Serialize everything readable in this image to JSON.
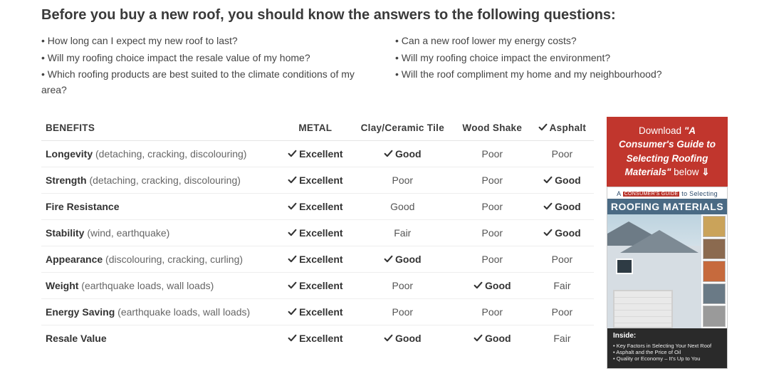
{
  "heading": "Before you buy a new roof, you should know the answers to the following questions:",
  "questions_left": [
    "• How long can I expect my new roof to last?",
    "• Will my roofing choice impact the resale value of my home?",
    "• Which roofing products are best suited to the climate conditions of my area?"
  ],
  "questions_right": [
    "• Can a new roof lower my energy costs?",
    "• Will my roofing choice impact the environment?",
    "• Will the roof compliment my home and my neighbourhood?"
  ],
  "table": {
    "header_benefits": "BENEFITS",
    "columns": [
      {
        "label": "METAL",
        "checked": false
      },
      {
        "label": "Clay/Ceramic Tile",
        "checked": false
      },
      {
        "label": "Wood Shake",
        "checked": false
      },
      {
        "label": "Asphalt",
        "checked": true
      }
    ],
    "rows": [
      {
        "name": "Longevity",
        "note": "(detaching, cracking, discolouring)",
        "cells": [
          {
            "v": "Excellent",
            "b": true,
            "c": true
          },
          {
            "v": "Good",
            "b": true,
            "c": true
          },
          {
            "v": "Poor",
            "b": false,
            "c": false
          },
          {
            "v": "Poor",
            "b": false,
            "c": false
          }
        ]
      },
      {
        "name": "Strength",
        "note": "(detaching, cracking, discolouring)",
        "cells": [
          {
            "v": "Excellent",
            "b": true,
            "c": true
          },
          {
            "v": "Poor",
            "b": false,
            "c": false
          },
          {
            "v": "Poor",
            "b": false,
            "c": false
          },
          {
            "v": "Good",
            "b": true,
            "c": true
          }
        ]
      },
      {
        "name": "Fire Resistance",
        "note": "",
        "cells": [
          {
            "v": "Excellent",
            "b": true,
            "c": true
          },
          {
            "v": "Good",
            "b": false,
            "c": false
          },
          {
            "v": "Poor",
            "b": false,
            "c": false
          },
          {
            "v": "Good",
            "b": true,
            "c": true
          }
        ]
      },
      {
        "name": "Stability",
        "note": "(wind, earthquake)",
        "cells": [
          {
            "v": "Excellent",
            "b": true,
            "c": true
          },
          {
            "v": "Fair",
            "b": false,
            "c": false
          },
          {
            "v": "Poor",
            "b": false,
            "c": false
          },
          {
            "v": "Good",
            "b": true,
            "c": true
          }
        ]
      },
      {
        "name": "Appearance",
        "note": "(discolouring, cracking, curling)",
        "cells": [
          {
            "v": "Excellent",
            "b": true,
            "c": true
          },
          {
            "v": "Good",
            "b": true,
            "c": true
          },
          {
            "v": "Poor",
            "b": false,
            "c": false
          },
          {
            "v": "Poor",
            "b": false,
            "c": false
          }
        ]
      },
      {
        "name": "Weight",
        "note": "(earthquake loads, wall loads)",
        "cells": [
          {
            "v": "Excellent",
            "b": true,
            "c": true
          },
          {
            "v": "Poor",
            "b": false,
            "c": false
          },
          {
            "v": "Good",
            "b": true,
            "c": true
          },
          {
            "v": "Fair",
            "b": false,
            "c": false
          }
        ]
      },
      {
        "name": "Energy Saving",
        "note": "(earthquake loads, wall loads)",
        "cells": [
          {
            "v": "Excellent",
            "b": true,
            "c": true
          },
          {
            "v": "Poor",
            "b": false,
            "c": false
          },
          {
            "v": "Poor",
            "b": false,
            "c": false
          },
          {
            "v": "Poor",
            "b": false,
            "c": false
          }
        ]
      },
      {
        "name": "Resale Value",
        "note": "",
        "cells": [
          {
            "v": "Excellent",
            "b": true,
            "c": true
          },
          {
            "v": "Good",
            "b": true,
            "c": true
          },
          {
            "v": "Good",
            "b": true,
            "c": true
          },
          {
            "v": "Fair",
            "b": false,
            "c": false
          }
        ]
      }
    ]
  },
  "promo": {
    "lead": "Download ",
    "title_quoted": "\"A Consumer's Guide to Selecting Roofing Materials\"",
    "trail": " below ",
    "arrow": "⇓",
    "cover_banner_pre": "A ",
    "cover_banner_mid": "CONSUMER'S GUIDE",
    "cover_banner_post": " to Selecting",
    "cover_title": "ROOFING MATERIALS",
    "swatch_colors": [
      "#caa35a",
      "#8b6a4f",
      "#c66a3d",
      "#6a7a86",
      "#9a9a9a"
    ],
    "inside_label": "Inside:",
    "inside_items": [
      "Key Factors in Selecting Your Next Roof",
      "Asphalt and the Price of Oil",
      "Quality or Economy – It's Up to You"
    ],
    "colors": {
      "red": "#c1362d",
      "blue": "#4a6a84"
    }
  }
}
